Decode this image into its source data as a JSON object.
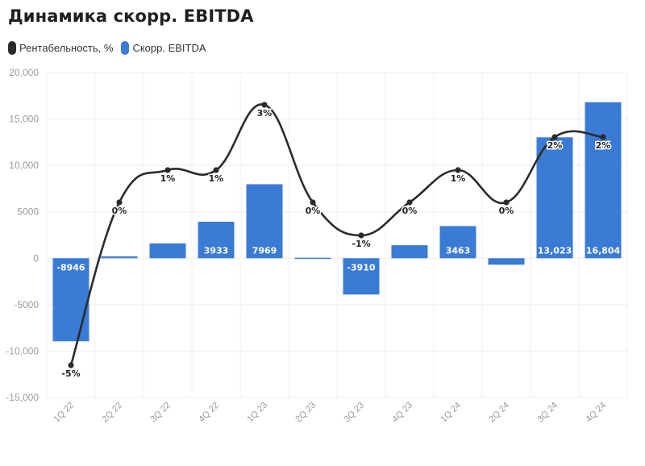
{
  "title": "Динамика скорр. EBITDA",
  "legend": {
    "line_label": "Рентабельность, %",
    "bar_label": "Скорр. EBITDA"
  },
  "colors": {
    "bar": "#3a7bd5",
    "line": "#2b2b2b"
  },
  "chart_data": {
    "type": "bar",
    "categories": [
      "1Q 22",
      "2Q 22",
      "3Q 22",
      "4Q 22",
      "1Q 23",
      "2Q 23",
      "3Q 23",
      "4Q 23",
      "1Q 24",
      "2Q 24",
      "3Q 24",
      "4Q 24"
    ],
    "ylim": [
      -15000,
      20000
    ],
    "yticks": [
      20000,
      15000,
      10000,
      5000,
      0,
      -5000,
      -10000,
      -15000
    ],
    "ytick_labels": [
      "20,000",
      "15,000",
      "10,000",
      "5000",
      "0",
      "-5000",
      "-10,000",
      "-15,000"
    ],
    "grid": true,
    "legend_position": "top-left",
    "series": [
      {
        "name": "Скорр. EBITDA",
        "type": "bar",
        "values": [
          -8946,
          200,
          1600,
          3933,
          7969,
          50,
          -3910,
          1400,
          3463,
          -700,
          13023,
          16804
        ],
        "labels": [
          "-8946",
          "",
          "",
          "3933",
          "7969",
          "",
          "-3910",
          "",
          "3463",
          "",
          "13,023",
          "16,804"
        ]
      },
      {
        "name": "Рентабельность, %",
        "type": "line",
        "labels": [
          "-5%",
          "0%",
          "1%",
          "1%",
          "3%",
          "0%",
          "-1%",
          "0%",
          "1%",
          "0%",
          "2%",
          "2%"
        ],
        "values": [
          -5,
          0,
          1,
          1,
          3,
          0,
          -1,
          0,
          1,
          0,
          2,
          2
        ]
      }
    ]
  }
}
